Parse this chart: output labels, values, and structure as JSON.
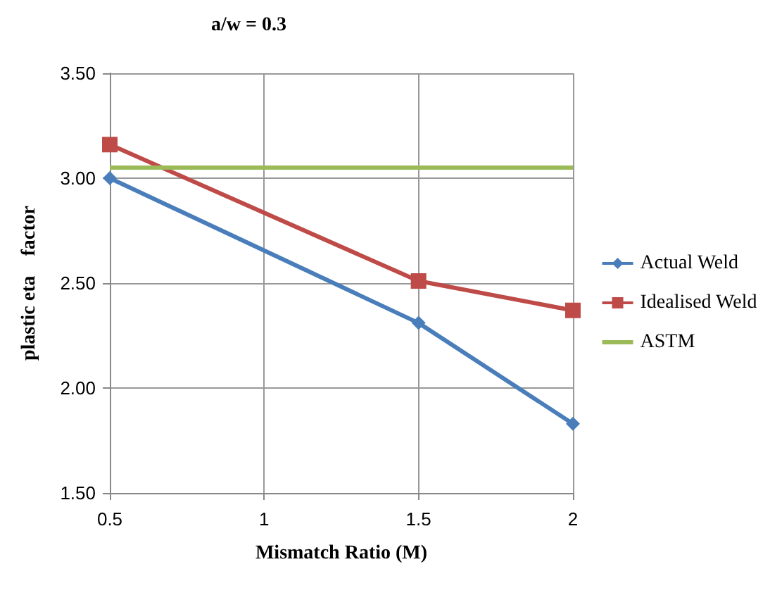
{
  "chart_data": {
    "type": "line",
    "title": "a/w = 0.3",
    "xlabel": "Mismatch Ratio (M)",
    "ylabel": "plastic eta    factor",
    "x": [
      0.5,
      1.5,
      2
    ],
    "series": [
      {
        "name": "Actual Weld",
        "color": "#4a7ebb",
        "marker": "diamond",
        "values": [
          3.0,
          2.31,
          1.83
        ]
      },
      {
        "name": "Idealised Weld",
        "color": "#be4b48",
        "marker": "square",
        "values": [
          3.16,
          2.51,
          2.37
        ]
      },
      {
        "name": "ASTM",
        "color": "#9bbb59",
        "marker": "none",
        "x": [
          0.5,
          2
        ],
        "values": [
          3.05,
          3.05
        ]
      }
    ],
    "xlim": [
      0.5,
      2
    ],
    "xticks": [
      0.5,
      1,
      1.5,
      2
    ],
    "ylim": [
      1.5,
      3.5
    ],
    "yticks": [
      {
        "value": 1.5,
        "label": "1.50"
      },
      {
        "value": 2,
        "label": "2.00"
      },
      {
        "value": 2.5,
        "label": "2.50"
      },
      {
        "value": 3,
        "label": "3.00"
      },
      {
        "value": 3.5,
        "label": "3.50"
      }
    ],
    "grid": true,
    "legend": "right"
  }
}
